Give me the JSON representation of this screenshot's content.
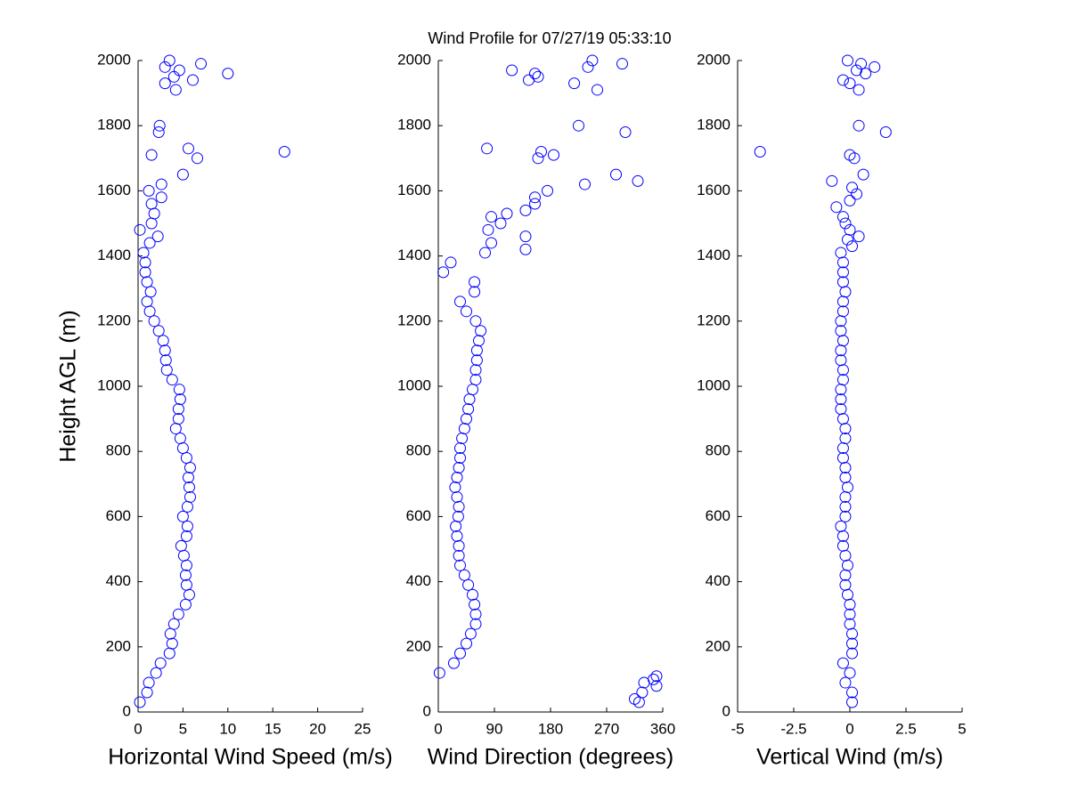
{
  "title": "Wind Profile for  07/27/19 05:33:10",
  "chart_data": [
    {
      "type": "scatter",
      "xlabel": "Horizontal Wind Speed (m/s)",
      "ylabel": "Height AGL (m)",
      "color": "#0000ff",
      "xlim": [
        0,
        25
      ],
      "xticks": [
        0,
        5,
        10,
        15,
        20,
        25
      ],
      "ylim": [
        0,
        2000
      ],
      "yticks": [
        0,
        200,
        400,
        600,
        800,
        1000,
        1200,
        1400,
        1600,
        1800,
        2000
      ],
      "x": [
        0.2,
        1,
        1.2,
        2,
        2.5,
        3.5,
        3.8,
        3.6,
        4,
        4.5,
        5.3,
        5.7,
        5.4,
        5.3,
        5.4,
        5.1,
        4.8,
        5.4,
        5.5,
        5,
        5.5,
        5.8,
        5.7,
        5.6,
        5.8,
        5.4,
        5,
        4.7,
        4.2,
        4.5,
        4.5,
        4.7,
        4.6,
        3.8,
        3.2,
        3.1,
        3,
        2.8,
        2.3,
        1.8,
        1.3,
        1,
        1.4,
        1,
        0.8,
        0.8,
        0.6,
        1.3,
        2.2,
        0.2,
        1.5,
        1.8,
        1.5,
        2.6,
        1.2,
        2.6,
        5,
        6.6,
        1.5,
        16.3,
        5.6,
        2.3,
        2.4,
        4.2,
        3,
        6.1,
        4,
        10,
        4.6,
        3,
        7,
        3.5
      ],
      "y": [
        30,
        60,
        90,
        120,
        150,
        180,
        210,
        240,
        270,
        300,
        330,
        360,
        390,
        420,
        450,
        480,
        510,
        540,
        570,
        600,
        630,
        660,
        690,
        720,
        750,
        780,
        810,
        840,
        870,
        900,
        930,
        960,
        990,
        1020,
        1050,
        1080,
        1110,
        1140,
        1170,
        1200,
        1230,
        1260,
        1290,
        1320,
        1350,
        1380,
        1410,
        1440,
        1460,
        1480,
        1500,
        1530,
        1560,
        1580,
        1600,
        1620,
        1650,
        1700,
        1710,
        1720,
        1730,
        1780,
        1800,
        1910,
        1930,
        1940,
        1950,
        1960,
        1970,
        1980,
        1990,
        2000
      ]
    },
    {
      "type": "scatter",
      "xlabel": "Wind Direction (degrees)",
      "color": "#0000ff",
      "xlim": [
        0,
        360
      ],
      "xticks": [
        0,
        90,
        180,
        270,
        360
      ],
      "ylim": [
        0,
        2000
      ],
      "yticks": [
        0,
        200,
        400,
        600,
        800,
        1000,
        1200,
        1400,
        1600,
        1800,
        2000
      ],
      "x": [
        322,
        315,
        327,
        350,
        330,
        345,
        350,
        2,
        25,
        35,
        45,
        52,
        60,
        60,
        58,
        55,
        48,
        42,
        35,
        33,
        33,
        30,
        28,
        32,
        33,
        30,
        27,
        30,
        33,
        35,
        35,
        38,
        42,
        45,
        48,
        50,
        55,
        60,
        60,
        62,
        62,
        65,
        68,
        60,
        45,
        35,
        58,
        58,
        8,
        20,
        75,
        140,
        85,
        140,
        80,
        100,
        85,
        110,
        140,
        155,
        155,
        175,
        235,
        320,
        285,
        160,
        185,
        165,
        78,
        300,
        225,
        255,
        218,
        145,
        160,
        155,
        118,
        240,
        295,
        247
      ],
      "y": [
        30,
        40,
        60,
        80,
        90,
        100,
        110,
        120,
        150,
        180,
        210,
        240,
        270,
        300,
        330,
        360,
        390,
        420,
        450,
        480,
        510,
        540,
        570,
        600,
        630,
        660,
        690,
        720,
        750,
        780,
        810,
        840,
        870,
        900,
        930,
        960,
        990,
        1020,
        1050,
        1080,
        1110,
        1140,
        1170,
        1200,
        1230,
        1260,
        1290,
        1320,
        1350,
        1380,
        1410,
        1420,
        1440,
        1460,
        1480,
        1500,
        1520,
        1530,
        1540,
        1560,
        1580,
        1600,
        1620,
        1630,
        1650,
        1700,
        1710,
        1720,
        1730,
        1780,
        1800,
        1910,
        1930,
        1940,
        1950,
        1960,
        1970,
        1980,
        1990,
        2000
      ]
    },
    {
      "type": "scatter",
      "xlabel": "Vertical Wind (m/s)",
      "color": "#0000ff",
      "xlim": [
        -5,
        5
      ],
      "xticks": [
        -5,
        -2.5,
        0,
        2.5,
        5
      ],
      "ylim": [
        0,
        2000
      ],
      "yticks": [
        0,
        200,
        400,
        600,
        800,
        1000,
        1200,
        1400,
        1600,
        1800,
        2000
      ],
      "x": [
        0.1,
        0.1,
        -0.2,
        0,
        -0.3,
        0.1,
        0.1,
        0.1,
        0,
        0,
        0,
        -0.1,
        -0.2,
        -0.2,
        -0.1,
        -0.2,
        -0.3,
        -0.3,
        -0.4,
        -0.2,
        -0.2,
        -0.2,
        -0.1,
        -0.2,
        -0.2,
        -0.3,
        -0.3,
        -0.2,
        -0.2,
        -0.3,
        -0.4,
        -0.4,
        -0.4,
        -0.3,
        -0.3,
        -0.4,
        -0.4,
        -0.3,
        -0.4,
        -0.4,
        -0.3,
        -0.3,
        -0.2,
        -0.3,
        -0.3,
        -0.3,
        -0.4,
        0.1,
        -0.1,
        0.4,
        0,
        -0.2,
        -0.3,
        -0.6,
        0,
        0.3,
        0.1,
        -0.8,
        0.6,
        0.2,
        0,
        -4,
        1.6,
        0.4,
        0.4,
        0,
        -0.3,
        0.7,
        0.3,
        1.1,
        0.5,
        -0.1
      ],
      "y": [
        30,
        60,
        90,
        120,
        150,
        180,
        210,
        240,
        270,
        300,
        330,
        360,
        390,
        420,
        450,
        480,
        510,
        540,
        570,
        600,
        630,
        660,
        690,
        720,
        750,
        780,
        810,
        840,
        870,
        900,
        930,
        960,
        990,
        1020,
        1050,
        1080,
        1110,
        1140,
        1170,
        1200,
        1230,
        1260,
        1290,
        1320,
        1350,
        1380,
        1410,
        1430,
        1450,
        1460,
        1480,
        1500,
        1520,
        1550,
        1570,
        1590,
        1610,
        1630,
        1650,
        1700,
        1710,
        1720,
        1780,
        1800,
        1910,
        1930,
        1940,
        1960,
        1970,
        1980,
        1990,
        2000
      ]
    }
  ]
}
